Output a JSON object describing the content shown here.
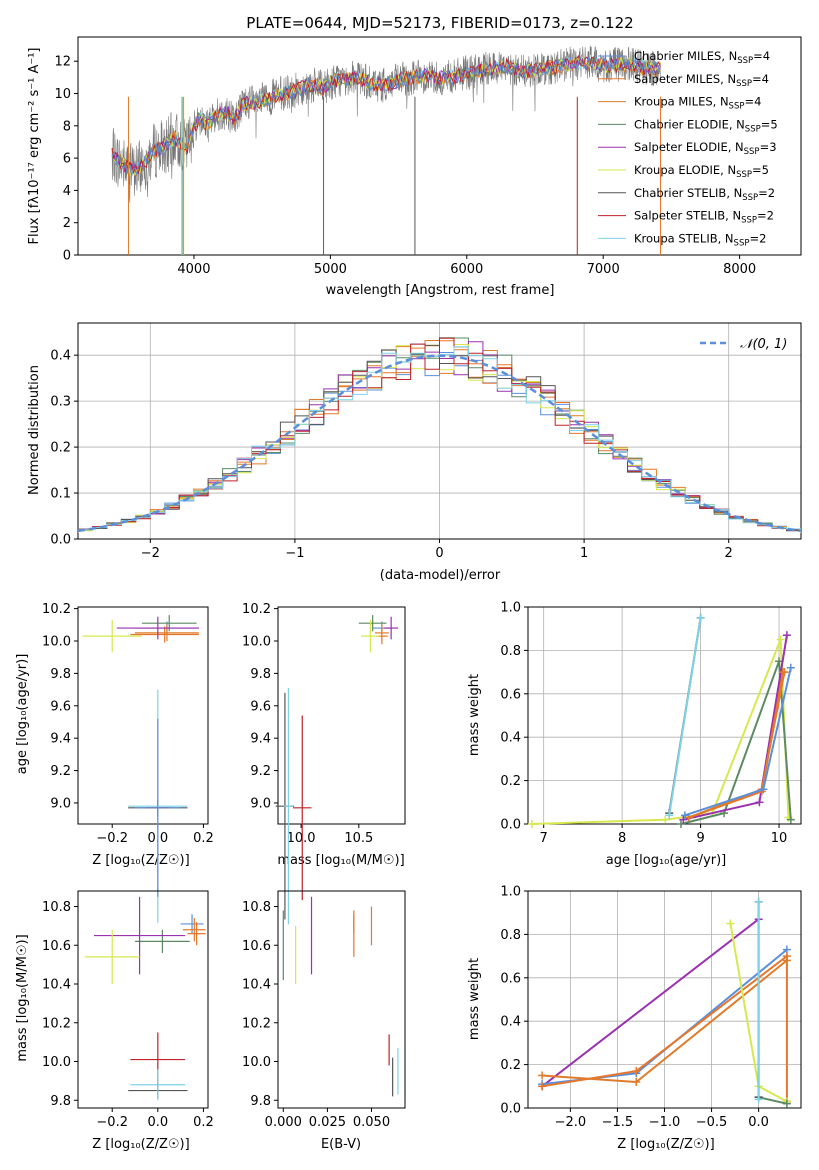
{
  "colors": [
    "#5b8fd9",
    "#e8762a",
    "#e07b2a",
    "#5b8a63",
    "#9b30b0",
    "#d6e84e",
    "#555555",
    "#c0202a",
    "#7fd3e6"
  ],
  "legend": [
    {
      "label": "Chabrier MILES, N",
      "sub": "SSP",
      "suffix": "=4"
    },
    {
      "label": "Salpeter MILES, N",
      "sub": "SSP",
      "suffix": "=4"
    },
    {
      "label": "Kroupa MILES, N",
      "sub": "SSP",
      "suffix": "=4"
    },
    {
      "label": "Chabrier ELODIE, N",
      "sub": "SSP",
      "suffix": "=5"
    },
    {
      "label": "Salpeter ELODIE, N",
      "sub": "SSP",
      "suffix": "=3"
    },
    {
      "label": "Kroupa ELODIE, N",
      "sub": "SSP",
      "suffix": "=5"
    },
    {
      "label": "Chabrier STELIB, N",
      "sub": "SSP",
      "suffix": "=2"
    },
    {
      "label": "Salpeter STELIB, N",
      "sub": "SSP",
      "suffix": "=2"
    },
    {
      "label": "Kroupa STELIB, N",
      "sub": "SSP",
      "suffix": "=2"
    }
  ],
  "chart_data": [
    {
      "id": "spectrum",
      "type": "line",
      "title": "PLATE=0644, MJD=52173, FIBERID=0173, z=0.122",
      "xlabel": "wavelength [Angstrom, rest frame]",
      "ylabel": "Flux [fλ10⁻¹⁷ erg cm⁻² s⁻¹ A⁻¹]",
      "xlim": [
        3150,
        8450
      ],
      "ylim": [
        0,
        13.5
      ],
      "xticks": [
        4000,
        5000,
        6000,
        7000,
        8000
      ],
      "yticks": [
        0,
        2,
        4,
        6,
        8,
        10,
        12
      ],
      "x": [
        3400,
        3450,
        3500,
        3550,
        3600,
        3650,
        3700,
        3750,
        3800,
        3850,
        3900,
        3950,
        4000,
        4050,
        4100,
        4150,
        4200,
        4250,
        4300,
        4350,
        4400,
        4450,
        4500,
        4550,
        4600,
        4650,
        4700,
        4750,
        4800,
        4850,
        4900,
        4950,
        5000,
        5100,
        5200,
        5300,
        5400,
        5500,
        5600,
        5700,
        5800,
        5900,
        6000,
        6100,
        6200,
        6300,
        6400,
        6500,
        6600,
        6700,
        6800,
        6900,
        7000,
        7100,
        7200,
        7300,
        7400
      ],
      "model": [
        6.2,
        5.8,
        5.5,
        5.2,
        5.4,
        5.8,
        6.4,
        6.6,
        6.8,
        7.2,
        7.0,
        6.6,
        8.0,
        8.5,
        8.0,
        8.6,
        8.8,
        8.8,
        8.4,
        9.2,
        9.5,
        9.4,
        9.6,
        9.7,
        9.9,
        10.0,
        10.1,
        10.2,
        10.4,
        10.5,
        10.5,
        10.3,
        10.7,
        10.9,
        11.0,
        10.6,
        10.5,
        10.8,
        11.0,
        11.1,
        11.0,
        11.0,
        11.3,
        11.4,
        11.6,
        11.7,
        11.3,
        11.5,
        11.6,
        11.7,
        11.9,
        11.9,
        11.7,
        11.8,
        11.8,
        11.6,
        11.5
      ]
    },
    {
      "id": "residual-hist",
      "type": "line",
      "xlabel": "(data-model)/error",
      "ylabel": "Normed distribution",
      "legend_label": "𝒩(0, 1)",
      "xlim": [
        -2.5,
        2.5
      ],
      "ylim": [
        0,
        0.47
      ],
      "xticks": [
        -2,
        -1,
        0,
        1,
        2
      ],
      "yticks": [
        0.0,
        0.1,
        0.2,
        0.3,
        0.4
      ],
      "bin_width": 0.1
    },
    {
      "id": "age-vs-z",
      "type": "scatter",
      "xlabel": "Z [log₁₀(Z/Z☉)]",
      "ylabel": "age  [log₁₀(age/yr)]",
      "xlim": [
        -0.35,
        0.22
      ],
      "ylim": [
        8.87,
        10.21
      ],
      "xticks": [
        -0.2,
        0.0,
        0.2
      ],
      "xticklabels": [
        "−0.2",
        "0.0",
        "0.2"
      ],
      "yticks": [
        9.0,
        9.2,
        9.4,
        9.6,
        9.8,
        10.0,
        10.2
      ],
      "points": [
        {
          "c": 0,
          "x": 0.04,
          "xe": 0.14,
          "y": 10.08,
          "ye": 0.04
        },
        {
          "c": 1,
          "x": 0.03,
          "xe": 0.15,
          "y": 10.04,
          "ye": 0.05
        },
        {
          "c": 2,
          "x": 0.04,
          "xe": 0.14,
          "y": 10.05,
          "ye": 0.05
        },
        {
          "c": 3,
          "x": 0.05,
          "xe": 0.12,
          "y": 10.11,
          "ye": 0.05
        },
        {
          "c": 4,
          "x": 0.0,
          "xe": 0.18,
          "y": 10.08,
          "ye": 0.07
        },
        {
          "c": 5,
          "x": -0.2,
          "xe": 0.13,
          "y": 10.03,
          "ye": 0.1
        },
        {
          "c": 6,
          "x": 0.0,
          "xe": 0.13,
          "y": 8.97,
          "ye": 0.05
        },
        {
          "c": 7,
          "x": 0.0,
          "xe": 0.05,
          "y": 8.97,
          "ye": 0.05
        },
        {
          "c": 8,
          "x": 0.0,
          "xe": 0.13,
          "y": 8.98,
          "ye": 0.72
        },
        {
          "c": 0,
          "x": 0.0,
          "xe": 0.1,
          "y": 8.97,
          "ye": 0.55
        }
      ]
    },
    {
      "id": "age-vs-mass",
      "type": "scatter",
      "xlabel": "mass [log₁₀(M/M☉)]",
      "xlim": [
        9.8,
        10.9
      ],
      "ylim": [
        8.87,
        10.21
      ],
      "xticks": [
        10.0,
        10.5
      ],
      "xticklabels": [
        "10.0",
        "10.5"
      ],
      "yticks": [
        9.0,
        9.2,
        9.4,
        9.6,
        9.8,
        10.0,
        10.2
      ],
      "points": [
        {
          "c": 0,
          "x": 10.7,
          "xe": 0.08,
          "y": 10.08,
          "ye": 0.04
        },
        {
          "c": 1,
          "x": 10.7,
          "xe": 0.05,
          "y": 10.03,
          "ye": 0.05
        },
        {
          "c": 2,
          "x": 10.7,
          "xe": 0.06,
          "y": 10.05,
          "ye": 0.05
        },
        {
          "c": 3,
          "x": 10.62,
          "xe": 0.12,
          "y": 10.11,
          "ye": 0.05
        },
        {
          "c": 4,
          "x": 10.78,
          "xe": 0.06,
          "y": 10.08,
          "ye": 0.07
        },
        {
          "c": 5,
          "x": 10.6,
          "xe": 0.08,
          "y": 10.03,
          "ye": 0.1
        },
        {
          "c": 6,
          "x": 9.86,
          "xe": 0.08,
          "y": 8.98,
          "ye": 0.7
        },
        {
          "c": 7,
          "x": 10.01,
          "xe": 0.08,
          "y": 8.97,
          "ye": 0.57
        },
        {
          "c": 8,
          "x": 9.89,
          "xe": 0.04,
          "y": 8.98,
          "ye": 0.73
        }
      ]
    },
    {
      "id": "weight-vs-age",
      "type": "line",
      "xlabel": "age  [log₁₀(age/yr)]",
      "ylabel": "mass weight",
      "xlim": [
        6.8,
        10.28
      ],
      "ylim": [
        0,
        1.0
      ],
      "xticks": [
        7,
        8,
        9,
        10
      ],
      "yticks": [
        0.0,
        0.2,
        0.4,
        0.6,
        0.8,
        1.0
      ],
      "series": [
        {
          "c": 5,
          "x": [
            6.85,
            8.55,
            9.15,
            10.02,
            10.12
          ],
          "y": [
            0.0,
            0.02,
            0.05,
            0.85,
            0.03
          ]
        },
        {
          "c": 3,
          "x": [
            8.75,
            9.3,
            10.0,
            10.15
          ],
          "y": [
            0.0,
            0.05,
            0.75,
            0.02
          ]
        },
        {
          "c": 4,
          "x": [
            8.78,
            9.75,
            10.1
          ],
          "y": [
            0.02,
            0.1,
            0.87
          ]
        },
        {
          "c": 1,
          "x": [
            8.85,
            9.78,
            10.05
          ],
          "y": [
            0.03,
            0.15,
            0.7
          ]
        },
        {
          "c": 2,
          "x": [
            8.85,
            9.78,
            10.07
          ],
          "y": [
            0.03,
            0.16,
            0.7
          ]
        },
        {
          "c": 0,
          "x": [
            8.8,
            9.8,
            10.15
          ],
          "y": [
            0.04,
            0.16,
            0.72
          ]
        },
        {
          "c": 6,
          "x": [
            8.6,
            9.0
          ],
          "y": [
            0.05,
            0.95
          ]
        },
        {
          "c": 8,
          "x": [
            8.6,
            9.0
          ],
          "y": [
            0.04,
            0.95
          ]
        }
      ]
    },
    {
      "id": "mass-vs-z",
      "type": "scatter",
      "xlabel": "Z [log₁₀(Z/Z☉)]",
      "ylabel": "mass [log₁₀(M/M☉)]",
      "xlim": [
        -0.35,
        0.22
      ],
      "ylim": [
        9.76,
        10.88
      ],
      "xticks": [
        -0.2,
        0.0,
        0.2
      ],
      "xticklabels": [
        "−0.2",
        "0.0",
        "0.2"
      ],
      "yticks": [
        9.8,
        10.0,
        10.2,
        10.4,
        10.6,
        10.8
      ],
      "points": [
        {
          "c": 0,
          "x": 0.15,
          "xe": 0.05,
          "y": 10.71,
          "ye": 0.05
        },
        {
          "c": 1,
          "x": 0.17,
          "xe": 0.04,
          "y": 10.66,
          "ye": 0.06
        },
        {
          "c": 2,
          "x": 0.16,
          "xe": 0.05,
          "y": 10.68,
          "ye": 0.06
        },
        {
          "c": 3,
          "x": 0.02,
          "xe": 0.12,
          "y": 10.62,
          "ye": 0.06
        },
        {
          "c": 4,
          "x": -0.08,
          "xe": 0.2,
          "y": 10.65,
          "ye": 0.2
        },
        {
          "c": 5,
          "x": -0.2,
          "xe": 0.12,
          "y": 10.54,
          "ye": 0.14
        },
        {
          "c": 6,
          "x": 0.0,
          "xe": 0.13,
          "y": 9.85,
          "ye": 0.04
        },
        {
          "c": 7,
          "x": 0.0,
          "xe": 0.12,
          "y": 10.01,
          "ye": 0.14
        },
        {
          "c": 8,
          "x": 0.0,
          "xe": 0.12,
          "y": 9.88,
          "ye": 0.08
        }
      ]
    },
    {
      "id": "mass-vs-ebv",
      "type": "scatter",
      "xlabel": "E(B-V)",
      "xlim": [
        -0.003,
        0.069
      ],
      "ylim": [
        9.76,
        10.88
      ],
      "xticks": [
        0.0,
        0.025,
        0.05
      ],
      "xticklabels": [
        "0.000",
        "0.025",
        "0.050"
      ],
      "yticks": [
        9.8,
        10.0,
        10.2,
        10.4,
        10.6,
        10.8
      ],
      "points": [
        {
          "c": 0,
          "x": 0.04,
          "ye": 0.05,
          "y": 10.71
        },
        {
          "c": 1,
          "x": 0.04,
          "ye": 0.12,
          "y": 10.66
        },
        {
          "c": 2,
          "x": 0.05,
          "ye": 0.1,
          "y": 10.7
        },
        {
          "c": 3,
          "x": 0.0,
          "ye": 0.18,
          "y": 10.6
        },
        {
          "c": 4,
          "x": 0.016,
          "ye": 0.2,
          "y": 10.65
        },
        {
          "c": 5,
          "x": 0.007,
          "ye": 0.15,
          "y": 10.55
        },
        {
          "c": 6,
          "x": 0.062,
          "ye": 0.1,
          "y": 9.92
        },
        {
          "c": 7,
          "x": 0.06,
          "ye": 0.08,
          "y": 10.06
        },
        {
          "c": 8,
          "x": 0.065,
          "ye": 0.12,
          "y": 9.95
        }
      ]
    },
    {
      "id": "weight-vs-z",
      "type": "line",
      "xlabel": "Z [log₁₀(Z/Z☉)]",
      "ylabel": "mass weight",
      "xlim": [
        -2.45,
        0.45
      ],
      "ylim": [
        0,
        1.0
      ],
      "xticks": [
        -2.0,
        -1.5,
        -1.0,
        -0.5,
        0.0
      ],
      "xticklabels": [
        "−2.0",
        "−1.5",
        "−1.0",
        "−0.5",
        "0.0"
      ],
      "yticks": [
        0.0,
        0.2,
        0.4,
        0.6,
        0.8,
        1.0
      ],
      "series": [
        {
          "c": 4,
          "x": [
            -2.3,
            0.0
          ],
          "y": [
            0.1,
            0.87
          ]
        },
        {
          "c": 0,
          "x": [
            -2.3,
            -1.3,
            0.3
          ],
          "y": [
            0.11,
            0.16,
            0.73
          ]
        },
        {
          "c": 1,
          "x": [
            -2.3,
            -1.3,
            0.3,
            0.3
          ],
          "y": [
            0.1,
            0.17,
            0.7,
            0.03
          ]
        },
        {
          "c": 2,
          "x": [
            -2.3,
            -1.3,
            0.3
          ],
          "y": [
            0.15,
            0.12,
            0.68
          ]
        },
        {
          "c": 5,
          "x": [
            -0.3,
            0.0,
            0.3
          ],
          "y": [
            0.85,
            0.1,
            0.03
          ]
        },
        {
          "c": 3,
          "x": [
            0.0,
            0.3
          ],
          "y": [
            0.05,
            0.02
          ]
        },
        {
          "c": 6,
          "x": [
            0.0,
            0.0
          ],
          "y": [
            0.05,
            0.95
          ]
        },
        {
          "c": 8,
          "x": [
            0.0,
            0.0
          ],
          "y": [
            0.04,
            0.95
          ]
        }
      ]
    }
  ]
}
